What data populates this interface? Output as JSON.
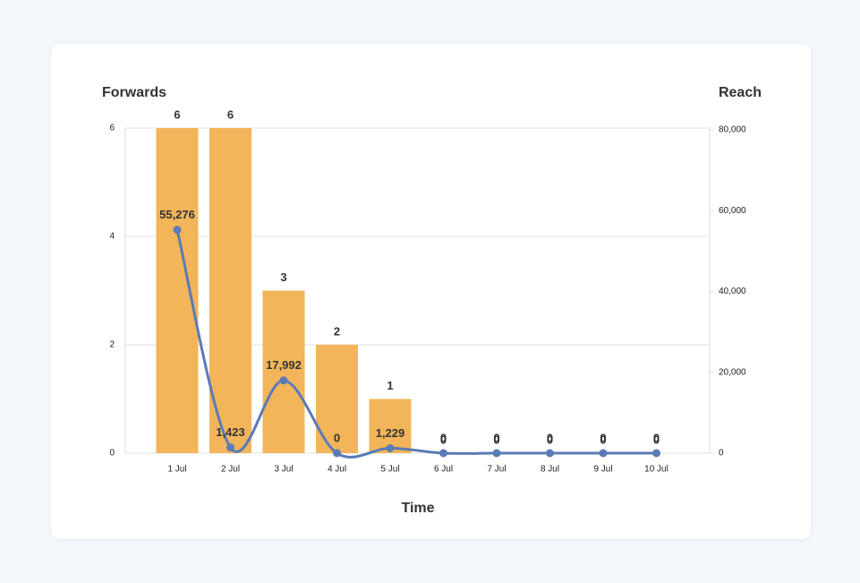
{
  "chart_data": {
    "type": "combo",
    "y_label": "Forwards",
    "y2_label": "Reach",
    "x_label": "Time",
    "categories": [
      "1 Jul",
      "2 Jul",
      "3 Jul",
      "4 Jul",
      "5 Jul",
      "6 Jul",
      "7 Jul",
      "8 Jul",
      "9 Jul",
      "10 Jul"
    ],
    "series": [
      {
        "name": "Forwards",
        "type": "bar",
        "color": "#f2b55a",
        "values": [
          6,
          6,
          3,
          2,
          1,
          0,
          0,
          0,
          0,
          0
        ]
      },
      {
        "name": "Reach",
        "type": "line",
        "axis": "y2",
        "color": "#5b7bb6",
        "values": [
          55276,
          1423,
          17992,
          0,
          1229,
          0,
          0,
          0,
          0,
          0
        ],
        "value_labels": [
          "55,276",
          "1,423",
          "17,992",
          "0",
          "1,229",
          "0",
          "0",
          "0",
          "0",
          "0"
        ]
      }
    ],
    "ylim": [
      0,
      6
    ],
    "yticks": [
      0,
      2,
      4,
      6
    ],
    "y2lim": [
      0,
      80000
    ],
    "y2ticks": [
      0,
      {
        "value": 20000,
        "label": "20,000"
      },
      {
        "value": 40000,
        "label": "40,000"
      },
      {
        "value": 60000,
        "label": "60,000"
      },
      {
        "value": 80000,
        "label": "80,000"
      }
    ],
    "grid": true
  }
}
